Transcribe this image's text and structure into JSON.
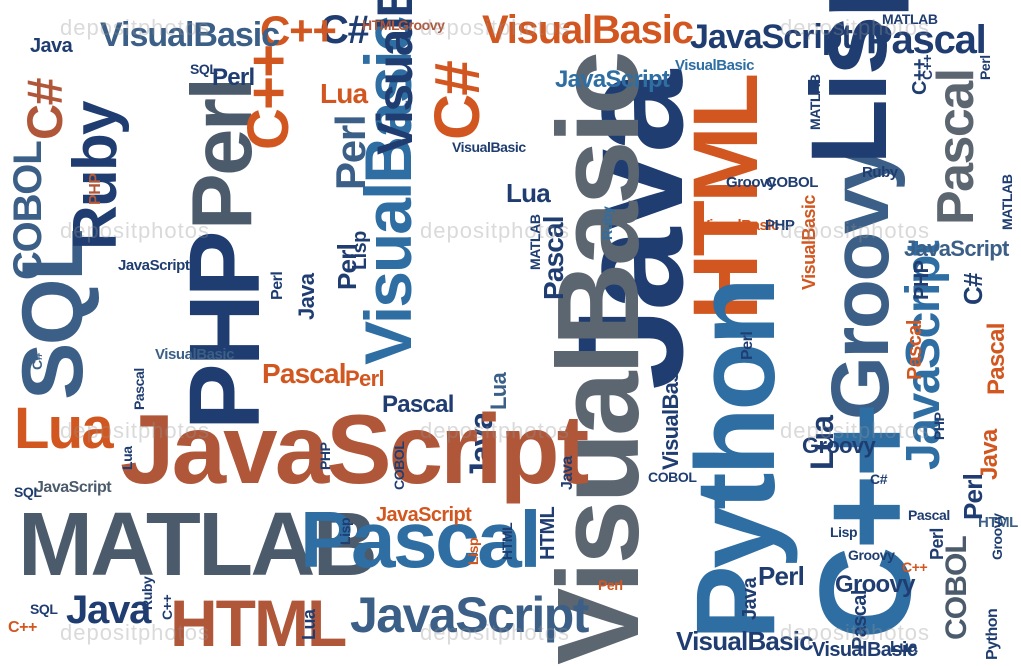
{
  "words": {
    "w1": "Java",
    "w2": "Lua",
    "w3": "VisualBasic",
    "w4": "C++",
    "w5": "C#",
    "w6": "HTML",
    "w7": "Groovy",
    "w8": "VisualBasic",
    "w9": "PHP",
    "w10": "JavaScript",
    "w11": "MATLAB",
    "w12": "Pascal",
    "w13": "Pascal",
    "w14": "C#",
    "w15": "Ruby",
    "w16": "SQL",
    "w17": "Perl",
    "w18": "C++",
    "w19": "Lua",
    "w20": "JavaScript",
    "w21": "Lisp",
    "w22": "Pascal",
    "w23": "C#",
    "w24": "COBOL",
    "w25": "PHP",
    "w26": "Perl",
    "w27": "VisualBasic",
    "w28": "C#",
    "w29": "HTML",
    "w30": "VisualBasic",
    "w31": "SQL",
    "w32": "PHP",
    "w33": "Java",
    "w34": "VisualBasic",
    "w35": "Python",
    "w36": "Groovy",
    "w37": "Lisp",
    "w38": "Lua",
    "w39": "JavaScript",
    "w40": "Pascal",
    "w41": "MATLAB",
    "w42": "Pascal",
    "w43": "Java",
    "w44": "HTML",
    "w45": "JavaScript",
    "w46": "VisualBasic",
    "w47": "Perl",
    "w48": "Groovy",
    "w49": "C++",
    "w50": "Pascal",
    "w51": "Perl",
    "w52": "COBOL",
    "w53": "Pascal",
    "w54": "Perl",
    "w55": "JavaScript",
    "w56": "Lua",
    "w57": "JavaScript",
    "w58": "C++",
    "w59": "VisualBasic",
    "w60": "Ruby",
    "w61": "SQL",
    "w62": "JavaScript",
    "w63": "Java",
    "w64": "Ruby",
    "w65": "Perl",
    "w66": "Java",
    "w67": "Lua",
    "w68": "C++",
    "w69": "Lua",
    "w70": "PHP",
    "w71": "SQL",
    "w72": "Perl",
    "w73": "Lisp",
    "w74": "HTML",
    "w75": "C++",
    "w76": "Groovy",
    "w77": "Python",
    "w78": "C++",
    "w79": "SQL",
    "w80": "Ruby",
    "w81": "C#",
    "w82": "VisualBasic",
    "w83": "PHP",
    "w84": "C#",
    "w85": "C++",
    "w86": "MATLAB",
    "w87": "Groovy",
    "w88": "COBOL",
    "w89": "VisualBasic",
    "w90": "PHP",
    "w91": "JavaScript",
    "w92": "C#",
    "w93": "MATLAB",
    "w94": "Java",
    "w95": "Perl",
    "w96": "JavaScript",
    "w97": "VisualBasic",
    "w98": "Lua",
    "w99": "HTML",
    "w100": "Perl",
    "w101": "Pascal",
    "w102": "JavaScript",
    "w103": "Lua",
    "w104": "Groovy",
    "w105": "C++",
    "w106": "Perl",
    "w107": "Lisp",
    "w108": "C++",
    "w109": "Lisp",
    "w110": "Groovy",
    "w111": "MATLAB",
    "w112": "Pascal",
    "w113": "HTML",
    "w114": "Lua",
    "w115": "C#",
    "w116": "Java",
    "w117": "Perl",
    "w118": "Lua",
    "w119": "C++",
    "w120": "VisualBasic",
    "w121": "Pascal",
    "w122": "SQL",
    "w123": "PHP",
    "w124": "HTML",
    "w125": "Python",
    "w126": "Pascal",
    "w127": "Groovy",
    "w128": "COBOL",
    "w129": "C#",
    "w130": "PHP",
    "w131": "Ruby",
    "w132": "Java",
    "w133": "Lua",
    "w134": "Perl",
    "w135": "Pascal",
    "w136": "Java",
    "w137": "HTML",
    "w138": "C++",
    "w139": "Lisp",
    "w140": "C++",
    "w141": "COBOL",
    "w142": "Pascal",
    "w143": "Perl",
    "w144": "C#",
    "w145": "Java",
    "w146": "Groovy",
    "w147": "Python",
    "w148": "Ruby",
    "w149": "Java",
    "w150": "VisualBasic",
    "w151": "JavaScript"
  },
  "watermark": "depositphotos"
}
